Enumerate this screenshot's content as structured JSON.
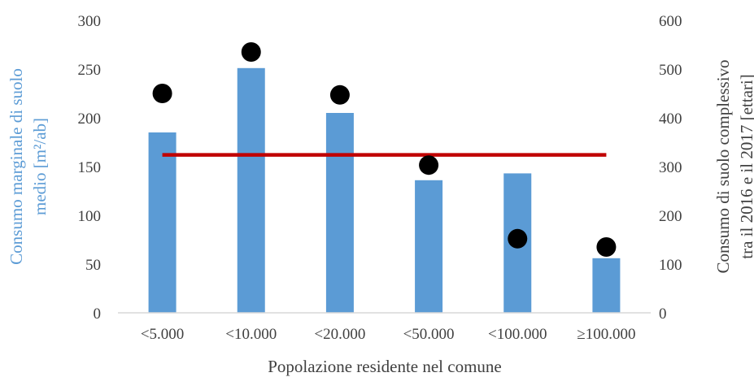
{
  "chart_data": {
    "type": "bar",
    "categories": [
      "<5.000",
      "<10.000",
      "<20.000",
      "<50.000",
      "<100.000",
      "≥100.000"
    ],
    "series": [
      {
        "type": "bar",
        "axis": "left",
        "values": [
          185,
          251,
          205,
          136,
          143,
          56
        ],
        "color": "#5b9bd5"
      },
      {
        "type": "scatter",
        "axis": "right",
        "values": [
          450,
          535,
          447,
          303,
          152,
          135
        ],
        "color": "#000000"
      },
      {
        "type": "line",
        "axis": "left",
        "values": [
          162,
          162,
          162,
          162,
          162,
          162
        ],
        "color": "#c00000"
      }
    ],
    "title": "",
    "xlabel": "Popolazione residente nel comune",
    "ylabel": [
      "Consumo marginale di suolo",
      "medio [m²/ab]"
    ],
    "ylabel_color": "#5b9bd5",
    "y2label": [
      "Consumo di suolo complessivo",
      "tra il 2016 e il 2017 [ettari]"
    ],
    "y2label_color": "#404040",
    "ylim": [
      0,
      300
    ],
    "y2lim": [
      0,
      600
    ],
    "yticks": [
      0,
      50,
      100,
      150,
      200,
      250,
      300
    ],
    "y2ticks": [
      0,
      100,
      200,
      300,
      400,
      500,
      600
    ],
    "grid": false,
    "legend": "none"
  }
}
